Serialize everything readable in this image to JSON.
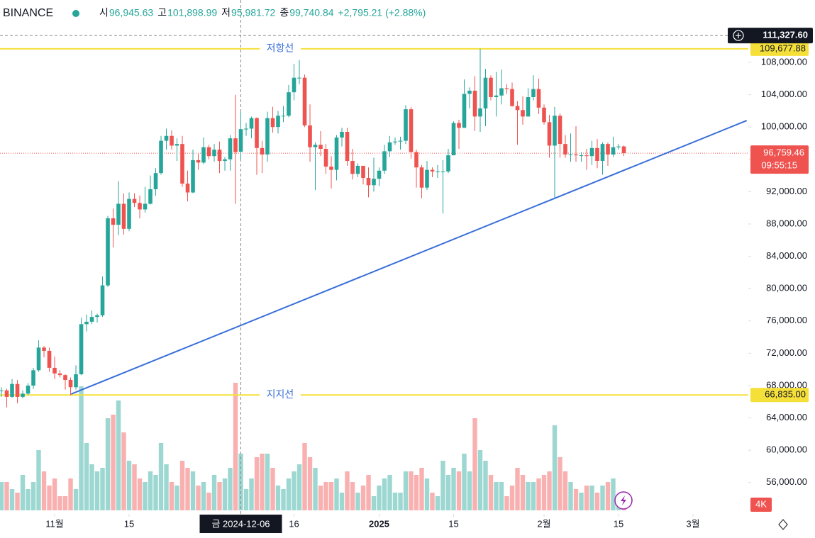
{
  "chart_data": {
    "type": "candlestick",
    "exchange": "BINANCE",
    "legend": [
      {
        "label": "시",
        "value": 96945.63,
        "value_label": "96,945.63"
      },
      {
        "label": "고",
        "value": 101898.99,
        "value_label": "101,898.99"
      },
      {
        "label": "저",
        "value": 95981.72,
        "value_label": "95,981.72"
      },
      {
        "label": "종",
        "value": 99740.84,
        "value_label": "99,740.84"
      }
    ],
    "change_label": "+2,795.21 (+2.88%)",
    "up_color": "#26a69a",
    "down_color": "#ef5350",
    "ylim": [
      52120,
      115720
    ],
    "xlim": [
      -0.27,
      140.4
    ],
    "yticks": [
      {
        "value": 56000,
        "label": "56,000.00"
      },
      {
        "value": 60000,
        "label": "60,000.00"
      },
      {
        "value": 64000,
        "label": "64,000.00"
      },
      {
        "value": 68000,
        "label": "68,000.00"
      },
      {
        "value": 72000,
        "label": "72,000.00"
      },
      {
        "value": 76000,
        "label": "76,000.00"
      },
      {
        "value": 80000,
        "label": "80,000.00"
      },
      {
        "value": 84000,
        "label": "84,000.00"
      },
      {
        "value": 88000,
        "label": "88,000.00"
      },
      {
        "value": 92000,
        "label": "92,000.00"
      },
      {
        "value": 96000,
        "label": "96,000.00"
      },
      {
        "value": 100000,
        "label": "100,000.00"
      },
      {
        "value": 104000,
        "label": "104,000.00"
      },
      {
        "value": 108000,
        "label": "108,000.00"
      }
    ],
    "xticks": [
      {
        "value": 10,
        "label": "11월"
      },
      {
        "value": 24,
        "label": "15"
      },
      {
        "value": 55,
        "label": "16"
      },
      {
        "value": 71,
        "label": "2025"
      },
      {
        "value": 85,
        "label": "15"
      },
      {
        "value": 102,
        "label": "2월"
      },
      {
        "value": 116,
        "label": "15"
      },
      {
        "value": 130,
        "label": "3월"
      }
    ],
    "crosshair": {
      "x": {
        "value": 45,
        "label": "금 2024-12-06"
      },
      "y": {
        "value": 111327.6,
        "label": "111,327.60"
      }
    },
    "hlines": [
      {
        "name": "저항선",
        "value": 109677.88,
        "label": "109,677.88",
        "color": "#f5e03a"
      },
      {
        "name": "지지선",
        "value": 66835,
        "label": "66,835.00",
        "color": "#f5e03a"
      }
    ],
    "trendline": {
      "start": [
        13.1,
        66950
      ],
      "end": [
        140.1,
        100800
      ],
      "color": "#3a6fd8"
    },
    "last_price": {
      "value": 96759.46,
      "label": "96,759.46",
      "countdown": "09:55:15"
    },
    "volume_label": "4K",
    "candles": [
      [
        67400,
        67800,
        66600,
        67400
      ],
      [
        67400,
        67600,
        65300,
        66600
      ],
      [
        66600,
        68800,
        66500,
        68200
      ],
      [
        68200,
        68700,
        65800,
        66600
      ],
      [
        66600,
        67400,
        66400,
        67000
      ],
      [
        67000,
        68300,
        66800,
        68000
      ],
      [
        68000,
        70200,
        67600,
        69900
      ],
      [
        69900,
        73600,
        69700,
        72700
      ],
      [
        72700,
        72900,
        71500,
        72300
      ],
      [
        72300,
        72700,
        69700,
        70200
      ],
      [
        70200,
        71600,
        68800,
        69500
      ],
      [
        69500,
        69900,
        69000,
        69300
      ],
      [
        69300,
        69400,
        67500,
        68700
      ],
      [
        68700,
        69000,
        66800,
        67800
      ],
      [
        67800,
        70500,
        67500,
        69400
      ],
      [
        69400,
        76400,
        69300,
        75600
      ],
      [
        75600,
        76800,
        74700,
        75900
      ],
      [
        75900,
        77300,
        75600,
        76500
      ],
      [
        76500,
        76900,
        75800,
        76700
      ],
      [
        76700,
        81500,
        76500,
        80400
      ],
      [
        80400,
        89000,
        80200,
        88700
      ],
      [
        88700,
        89900,
        85100,
        87900
      ],
      [
        87900,
        93300,
        86600,
        90500
      ],
      [
        90500,
        91800,
        86700,
        87400
      ],
      [
        87400,
        91900,
        87100,
        91100
      ],
      [
        91100,
        91800,
        90100,
        90600
      ],
      [
        90600,
        91500,
        88700,
        89800
      ],
      [
        89800,
        92600,
        89400,
        90500
      ],
      [
        90500,
        94000,
        90400,
        92300
      ],
      [
        92300,
        94900,
        91500,
        94300
      ],
      [
        94300,
        98900,
        94100,
        98300
      ],
      [
        98300,
        99800,
        97200,
        98900
      ],
      [
        98900,
        99600,
        97200,
        97700
      ],
      [
        97700,
        98600,
        95800,
        97900
      ],
      [
        97900,
        98900,
        92600,
        93000
      ],
      [
        93000,
        94600,
        90800,
        91900
      ],
      [
        91900,
        97200,
        91800,
        95900
      ],
      [
        95900,
        96700,
        94700,
        95600
      ],
      [
        95600,
        98700,
        95400,
        97500
      ],
      [
        97500,
        97800,
        96000,
        96400
      ],
      [
        96400,
        97900,
        95700,
        97200
      ],
      [
        97200,
        98200,
        94300,
        95800
      ],
      [
        95800,
        96300,
        94600,
        96000
      ],
      [
        96000,
        99000,
        94600,
        98600
      ],
      [
        98600,
        104000,
        90500,
        96900
      ],
      [
        96945.63,
        101898.99,
        95981.72,
        99740.84
      ],
      [
        99700,
        100500,
        98900,
        99800
      ],
      [
        99800,
        101300,
        98600,
        101100
      ],
      [
        101100,
        101200,
        94100,
        97400
      ],
      [
        97400,
        98300,
        94300,
        96600
      ],
      [
        96600,
        101900,
        95700,
        101100
      ],
      [
        101100,
        102500,
        99300,
        100000
      ],
      [
        100000,
        102000,
        99200,
        101400
      ],
      [
        101400,
        102600,
        100600,
        101400
      ],
      [
        101400,
        105200,
        101200,
        104300
      ],
      [
        104300,
        107800,
        103300,
        106100
      ],
      [
        106100,
        108300,
        105300,
        106100
      ],
      [
        106100,
        106500,
        100000,
        100200
      ],
      [
        100200,
        102800,
        95700,
        97500
      ],
      [
        97500,
        98100,
        92200,
        97800
      ],
      [
        97800,
        99500,
        96400,
        97300
      ],
      [
        97300,
        97900,
        94200,
        95100
      ],
      [
        95100,
        96400,
        92400,
        94700
      ],
      [
        94700,
        99000,
        93400,
        98700
      ],
      [
        98700,
        99900,
        97600,
        99400
      ],
      [
        99400,
        99900,
        95200,
        95800
      ],
      [
        95800,
        97300,
        93500,
        94200
      ],
      [
        94200,
        95500,
        93800,
        95200
      ],
      [
        95200,
        95200,
        92900,
        93700
      ],
      [
        93700,
        95000,
        91300,
        92800
      ],
      [
        92800,
        96200,
        92000,
        93600
      ],
      [
        93600,
        95000,
        92700,
        94600
      ],
      [
        94600,
        97800,
        94200,
        97000
      ],
      [
        97000,
        98900,
        96300,
        98100
      ],
      [
        98100,
        98700,
        97800,
        98200
      ],
      [
        98200,
        98800,
        97200,
        98300
      ],
      [
        98300,
        102700,
        97900,
        102200
      ],
      [
        102200,
        102500,
        96100,
        96900
      ],
      [
        96900,
        97200,
        92500,
        95000
      ],
      [
        95000,
        95300,
        91200,
        92500
      ],
      [
        92500,
        95800,
        92200,
        94700
      ],
      [
        94700,
        95000,
        93800,
        94500
      ],
      [
        94500,
        95300,
        93700,
        94500
      ],
      [
        94500,
        95900,
        89300,
        94500
      ],
      [
        94500,
        97300,
        94300,
        96500
      ],
      [
        96500,
        100700,
        96500,
        100500
      ],
      [
        100500,
        100900,
        97300,
        99900
      ],
      [
        99900,
        105900,
        99900,
        104100
      ],
      [
        104100,
        104900,
        102300,
        104500
      ],
      [
        104500,
        106300,
        99500,
        101300
      ],
      [
        101300,
        109700,
        99400,
        102300
      ],
      [
        102300,
        107200,
        100100,
        106100
      ],
      [
        106100,
        106400,
        103300,
        103700
      ],
      [
        103700,
        106800,
        101300,
        103900
      ],
      [
        103900,
        107100,
        102800,
        104800
      ],
      [
        104800,
        105300,
        104100,
        104700
      ],
      [
        104700,
        105500,
        102500,
        102600
      ],
      [
        102600,
        103200,
        97800,
        102100
      ],
      [
        102100,
        103800,
        100300,
        101300
      ],
      [
        101300,
        104800,
        101300,
        103700
      ],
      [
        103700,
        106400,
        103300,
        104700
      ],
      [
        104700,
        106000,
        101600,
        102400
      ],
      [
        102400,
        102800,
        100300,
        100600
      ],
      [
        100600,
        101500,
        96200,
        97700
      ],
      [
        97700,
        102500,
        91200,
        101400
      ],
      [
        101400,
        101700,
        96200,
        97900
      ],
      [
        97900,
        99000,
        96200,
        96600
      ],
      [
        96600,
        99200,
        95700,
        96600
      ],
      [
        96600,
        100100,
        95700,
        96500
      ],
      [
        96500,
        96900,
        95700,
        96500
      ],
      [
        96500,
        97300,
        94700,
        96400
      ],
      [
        96400,
        98300,
        95300,
        97400
      ],
      [
        97400,
        98500,
        94900,
        95800
      ],
      [
        95800,
        98100,
        94100,
        97900
      ],
      [
        97900,
        98100,
        95200,
        96600
      ],
      [
        96600,
        98800,
        96300,
        97500
      ],
      [
        97500,
        97900,
        97200,
        97600
      ],
      [
        97600,
        97700,
        96400,
        96759.46
      ]
    ],
    "volume": [
      40,
      40,
      30,
      25,
      50,
      30,
      40,
      85,
      55,
      35,
      45,
      20,
      20,
      45,
      30,
      175,
      95,
      65,
      55,
      60,
      130,
      135,
      155,
      110,
      70,
      65,
      45,
      40,
      55,
      50,
      95,
      65,
      40,
      35,
      70,
      60,
      55,
      35,
      40,
      25,
      50,
      40,
      45,
      60,
      180,
      80,
      30,
      45,
      75,
      80,
      80,
      60,
      35,
      30,
      45,
      55,
      65,
      95,
      75,
      60,
      35,
      40,
      40,
      45,
      25,
      55,
      40,
      25,
      35,
      50,
      20,
      35,
      45,
      50,
      25,
      25,
      55,
      55,
      50,
      60,
      45,
      25,
      20,
      70,
      50,
      60,
      55,
      80,
      55,
      130,
      85,
      70,
      50,
      40,
      40,
      20,
      35,
      60,
      50,
      40,
      40,
      45,
      50,
      55,
      120,
      75,
      55,
      40,
      30,
      25,
      35,
      35,
      25,
      35,
      40,
      45,
      15,
      10
    ]
  }
}
